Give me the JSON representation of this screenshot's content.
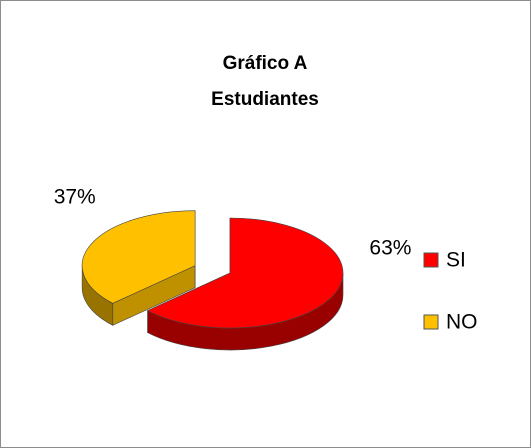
{
  "chart_data": {
    "type": "pie",
    "title": "Gráfico A",
    "subtitle": "Estudiantes",
    "categories": [
      "SI",
      "NO"
    ],
    "values": [
      63,
      37
    ],
    "value_labels": [
      "63%",
      "37%"
    ],
    "colors": [
      "#ff0000",
      "#ffc000"
    ],
    "legend": "right"
  }
}
